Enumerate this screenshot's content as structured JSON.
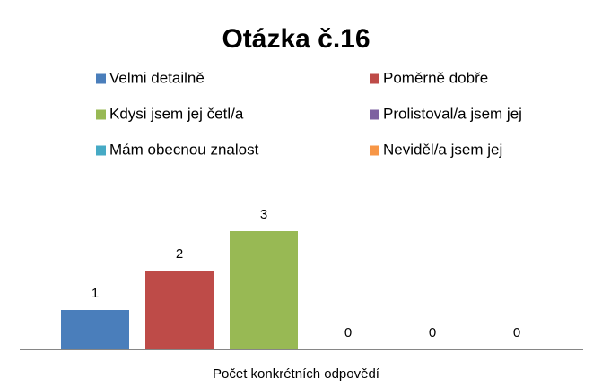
{
  "chart_data": {
    "type": "bar",
    "title": "Otázka č.16",
    "x_label": "Počet konkrétních odpovědí",
    "ylim": [
      0,
      4
    ],
    "series": [
      {
        "name": "Velmi detailně",
        "color": "#4a7ebb",
        "values": [
          1
        ]
      },
      {
        "name": "Poměrně dobře",
        "color": "#be4b48",
        "values": [
          2
        ]
      },
      {
        "name": "Kdysi jsem jej četl/a",
        "color": "#98b954",
        "values": [
          3
        ]
      },
      {
        "name": "Prolistoval/a jsem jej",
        "color": "#7d60a0",
        "values": [
          0
        ]
      },
      {
        "name": "Mám obecnou znalost",
        "color": "#46aac5",
        "values": [
          0
        ]
      },
      {
        "name": "Neviděl/a jsem jej",
        "color": "#f79646",
        "values": [
          0
        ]
      }
    ]
  }
}
